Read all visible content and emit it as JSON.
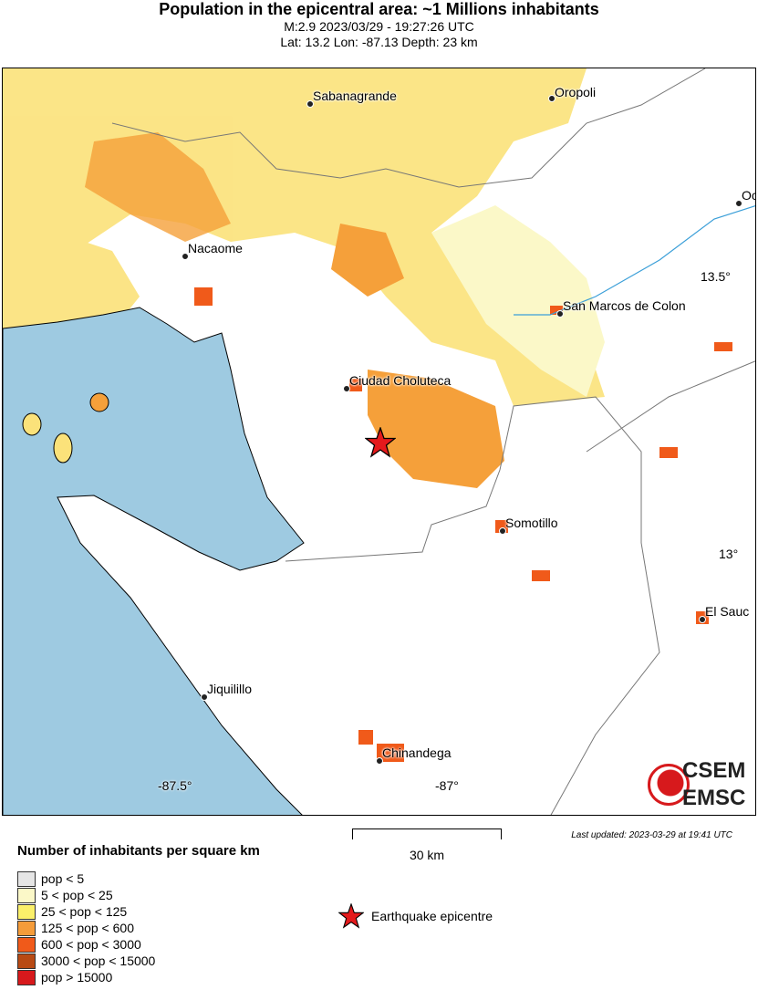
{
  "header": {
    "title": "Population in the epicentral area: ~1 Millions inhabitants",
    "line1": "M:2.9 2023/03/29 - 19:27:26 UTC",
    "line2": "Lat: 13.2 Lon: -87.13 Depth: 23 km"
  },
  "map": {
    "cities": [
      "Sabanagrande",
      "Oropoli",
      "Oc",
      "Nacaome",
      "San Marcos de Colon",
      "Ciudad Choluteca",
      "Somotillo",
      "El Sauc",
      "Jiquilillo",
      "Chinandega"
    ],
    "lat_ticks": [
      "13.5°",
      "13°"
    ],
    "lon_ticks": [
      "-87.5°",
      "-87°"
    ],
    "colors": {
      "sea": "#9ecae1",
      "land": "#ffffff",
      "epicentre": "#e41a1c"
    },
    "logo": {
      "top": "CSEM",
      "bottom": "EMSC"
    }
  },
  "scale": {
    "label": "30 km"
  },
  "updated": "Last updated: 2023-03-29 at 19:41 UTC",
  "legend": {
    "title": "Number of inhabitants per square km",
    "items": [
      {
        "label": "pop < 5",
        "color": "#e5e5e5"
      },
      {
        "label": "5 < pop < 25",
        "color": "#fbf8c8"
      },
      {
        "label": "25 < pop < 125",
        "color": "#fbf06a"
      },
      {
        "label": "125 < pop < 600",
        "color": "#f59c3a"
      },
      {
        "label": "600 < pop < 3000",
        "color": "#f05a1a"
      },
      {
        "label": "3000 < pop < 15000",
        "color": "#b84a14"
      },
      {
        "label": "pop > 15000",
        "color": "#d7191c"
      }
    ],
    "epicentre": "Earthquake epicentre"
  }
}
